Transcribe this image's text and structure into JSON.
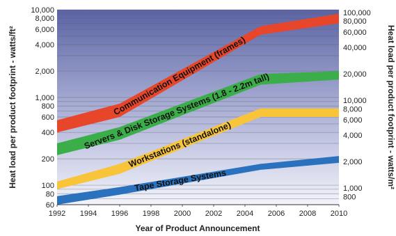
{
  "chart_data": {
    "type": "area",
    "title": "",
    "xlabel": "Year of Product Announcement",
    "ylabel_left": "Heat load per product footprint - watts/ft²",
    "ylabel_right": "Heat load per product footprint - watts/m²",
    "x_range": [
      1992,
      2010
    ],
    "y_range_left": [
      60,
      10000
    ],
    "y_scale": "log",
    "x_ticks": [
      "1992",
      "1994",
      "1996",
      "1998",
      "2000",
      "2002",
      "2004",
      "2006",
      "2008",
      "2010"
    ],
    "y_ticks_left": [
      "60",
      "80",
      "100",
      "200",
      "400",
      "600",
      "800",
      "1,000",
      "2,000",
      "4,000",
      "6,000",
      "8,000",
      "10,000"
    ],
    "y_ticks_right": [
      "800",
      "1,000",
      "2,000",
      "4,000",
      "6,000",
      "8,000",
      "10,000",
      "20,000",
      "40,000",
      "60,000",
      "80,000",
      "100,000"
    ],
    "series": [
      {
        "name": "Communication Equipment (frames)",
        "color": "#e8462a",
        "x": [
          1992,
          1996,
          2005,
          2010
        ],
        "upper": [
          550,
          850,
          6500,
          9000
        ],
        "lower": [
          400,
          600,
          5200,
          7000
        ]
      },
      {
        "name": "Servers & Disk Storage Systems (1.8 - 2.2m tall)",
        "color": "#3cae49",
        "x": [
          1992,
          1996,
          2005,
          2010
        ],
        "upper": [
          300,
          460,
          1850,
          2000
        ],
        "lower": [
          220,
          330,
          1400,
          1600
        ]
      },
      {
        "name": "Workstations (standalone)",
        "color": "#f8c53a",
        "x": [
          1992,
          1996,
          2005,
          2010
        ],
        "upper": [
          110,
          175,
          750,
          750
        ],
        "lower": [
          90,
          135,
          600,
          600
        ]
      },
      {
        "name": "Tape Storage Systems",
        "color": "#2a72bd",
        "x": [
          1992,
          1996,
          2005,
          2010
        ],
        "upper": [
          75,
          95,
          175,
          215
        ],
        "lower": [
          60,
          78,
          150,
          180
        ]
      }
    ]
  }
}
